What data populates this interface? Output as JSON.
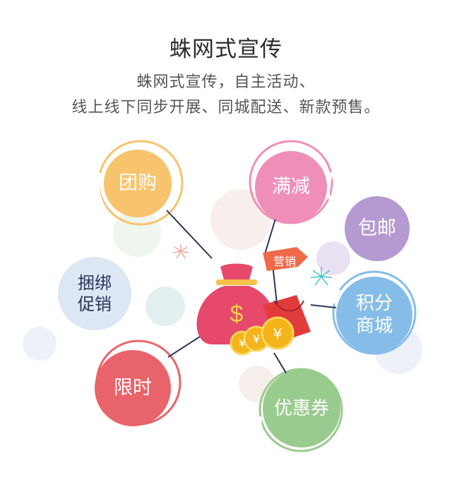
{
  "header": {
    "title": "蛛网式宣传",
    "subtitle_line1": "蛛网式宣传，自主活动、",
    "subtitle_line2": "线上线下同步开展、同城配送、新款预售。"
  },
  "center": {
    "flag_label": "营销",
    "dollar_symbol": "$",
    "coin_symbol": "¥"
  },
  "nodes": [
    {
      "id": "tuangou",
      "lines": [
        "团购"
      ],
      "color": "#f7c36c"
    },
    {
      "id": "manjian",
      "lines": [
        "满减"
      ],
      "color": "#ef8fb8"
    },
    {
      "id": "baoyou",
      "lines": [
        "包邮"
      ],
      "color": "#b49ad0"
    },
    {
      "id": "kunbang",
      "lines": [
        "捆绑",
        "促销"
      ],
      "color": "#dde6f3"
    },
    {
      "id": "jifen",
      "lines": [
        "积分",
        "商城"
      ],
      "color": "#86bde8"
    },
    {
      "id": "xianshi",
      "lines": [
        "限时"
      ],
      "color": "#e9636a"
    },
    {
      "id": "youhuiquan",
      "lines": [
        "优惠券"
      ],
      "color": "#9acb8e"
    }
  ]
}
